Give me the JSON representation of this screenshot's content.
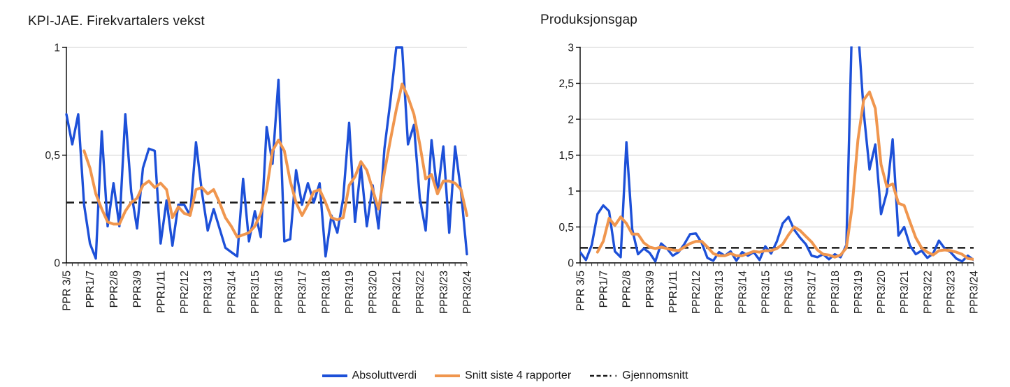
{
  "figure": {
    "legend": [
      {
        "label": "Absoluttverdi",
        "color": "#1d50d8",
        "style": "solid"
      },
      {
        "label": "Snitt siste 4 rapporter",
        "color": "#f0964e",
        "style": "solid"
      },
      {
        "label": "Gjennomsnitt",
        "color": "#1a1a1a",
        "style": "dash-dot"
      }
    ]
  },
  "colors": {
    "absolute_line": "#1d50d8",
    "average4_line": "#f0964e",
    "mean_line": "#1a1a1a",
    "gridline": "#d9d9d9",
    "axis": "#000000",
    "text": "#1a1a1a"
  },
  "chart_data": [
    {
      "type": "line",
      "title": "KPI-JAE. Firekvartalers vekst",
      "ylim": [
        0,
        1
      ],
      "y_ticks": [
        {
          "value": 1,
          "label": "1"
        },
        {
          "value": 0.5,
          "label": "0,5"
        },
        {
          "value": 0,
          "label": "0"
        }
      ],
      "gridline_values": [
        1,
        0.5
      ],
      "x_tick_labels": [
        "PPR 3/5",
        "PPR1/7",
        "PPR2/8",
        "PPR3/9",
        "PPR1/11",
        "PPR2/12",
        "PPR3/13",
        "PPR3/14",
        "PPR3/15",
        "PPR3/16",
        "PPR3/17",
        "PPR3/18",
        "PPR3/19",
        "PPR3/20",
        "PPR3/21",
        "PPR3/22",
        "PPR3/23",
        "PPR3/24"
      ],
      "x_label_every": 4,
      "n_points": 69,
      "legend_position": "bottom",
      "grid": "horizontal",
      "series": [
        {
          "name": "Absoluttverdi",
          "values": [
            0.69,
            0.55,
            0.69,
            0.27,
            0.09,
            0.02,
            0.61,
            0.17,
            0.37,
            0.17,
            0.69,
            0.33,
            0.16,
            0.44,
            0.53,
            0.52,
            0.09,
            0.29,
            0.08,
            0.27,
            0.27,
            0.22,
            0.56,
            0.33,
            0.15,
            0.25,
            0.16,
            0.07,
            0.05,
            0.03,
            0.39,
            0.1,
            0.24,
            0.12,
            0.63,
            0.46,
            0.85,
            0.1,
            0.11,
            0.43,
            0.27,
            0.37,
            0.28,
            0.37,
            0.03,
            0.22,
            0.14,
            0.3,
            0.65,
            0.19,
            0.45,
            0.17,
            0.36,
            0.16,
            0.53,
            0.75,
            1.0,
            1.0,
            0.55,
            0.64,
            0.3,
            0.15,
            0.57,
            0.32,
            0.54,
            0.14,
            0.54,
            0.33,
            0.04
          ]
        },
        {
          "name": "Snitt siste 4 rapporter",
          "values": [
            null,
            null,
            null,
            0.52,
            0.44,
            0.32,
            0.25,
            0.19,
            0.18,
            0.18,
            0.24,
            0.28,
            0.3,
            0.36,
            0.38,
            0.35,
            0.37,
            0.34,
            0.21,
            0.26,
            0.23,
            0.22,
            0.34,
            0.35,
            0.32,
            0.34,
            0.28,
            0.21,
            0.17,
            0.12,
            0.13,
            0.14,
            0.17,
            0.23,
            0.34,
            0.52,
            0.57,
            0.52,
            0.38,
            0.28,
            0.22,
            0.27,
            0.33,
            0.34,
            0.28,
            0.21,
            0.2,
            0.21,
            0.36,
            0.4,
            0.47,
            0.43,
            0.34,
            0.25,
            0.42,
            0.57,
            0.71,
            0.83,
            0.77,
            0.69,
            0.55,
            0.39,
            0.41,
            0.32,
            0.38,
            0.38,
            0.37,
            0.34,
            0.22
          ]
        }
      ],
      "mean_line": {
        "name": "Gjennomsnitt",
        "value": 0.28
      }
    },
    {
      "type": "line",
      "title": "Produksjonsgap",
      "ylim": [
        0,
        3
      ],
      "y_ticks": [
        {
          "value": 3,
          "label": "3"
        },
        {
          "value": 2.5,
          "label": "2,5"
        },
        {
          "value": 2,
          "label": "2"
        },
        {
          "value": 1.5,
          "label": "1,5"
        },
        {
          "value": 1,
          "label": "1"
        },
        {
          "value": 0.5,
          "label": "0,5"
        },
        {
          "value": 0,
          "label": "0"
        }
      ],
      "gridline_values": [
        3,
        2.5,
        2,
        1.5,
        1,
        0.5
      ],
      "x_tick_labels": [
        "PPR 3/5",
        "PPR1/7",
        "PPR2/8",
        "PPR3/9",
        "PPR1/11",
        "PPR2/12",
        "PPR3/13",
        "PPR3/14",
        "PPR3/15",
        "PPR3/16",
        "PPR3/17",
        "PPR3/18",
        "PPR3/19",
        "PPR3/20",
        "PPR3/21",
        "PPR3/22",
        "PPR3/23",
        "PPR3/24"
      ],
      "x_label_every": 4,
      "n_points": 69,
      "legend_position": "bottom",
      "grid": "horizontal",
      "clip_to_plot": true,
      "series": [
        {
          "name": "Absoluttverdi",
          "values": [
            0.15,
            0.04,
            0.25,
            0.68,
            0.8,
            0.72,
            0.16,
            0.08,
            1.68,
            0.47,
            0.12,
            0.2,
            0.14,
            0.02,
            0.27,
            0.2,
            0.1,
            0.15,
            0.26,
            0.4,
            0.41,
            0.28,
            0.07,
            0.03,
            0.15,
            0.1,
            0.16,
            0.03,
            0.15,
            0.1,
            0.15,
            0.04,
            0.23,
            0.13,
            0.3,
            0.55,
            0.64,
            0.46,
            0.35,
            0.26,
            0.1,
            0.08,
            0.12,
            0.05,
            0.12,
            0.08,
            0.25,
            3.4,
            3.3,
            2.1,
            1.3,
            1.65,
            0.68,
            0.98,
            1.72,
            0.38,
            0.5,
            0.24,
            0.12,
            0.17,
            0.07,
            0.13,
            0.31,
            0.2,
            0.15,
            0.06,
            0.02,
            0.1,
            0.04
          ]
        },
        {
          "name": "Snitt siste 4 rapporter",
          "values": [
            null,
            null,
            null,
            0.15,
            0.3,
            0.62,
            0.52,
            0.64,
            0.55,
            0.4,
            0.4,
            0.28,
            0.22,
            0.2,
            0.22,
            0.2,
            0.18,
            0.17,
            0.22,
            0.27,
            0.3,
            0.3,
            0.22,
            0.13,
            0.1,
            0.1,
            0.13,
            0.1,
            0.1,
            0.13,
            0.16,
            0.15,
            0.17,
            0.17,
            0.2,
            0.26,
            0.39,
            0.5,
            0.45,
            0.37,
            0.29,
            0.18,
            0.12,
            0.11,
            0.08,
            0.11,
            0.21,
            0.78,
            1.71,
            2.27,
            2.38,
            2.15,
            1.37,
            1.06,
            1.1,
            0.83,
            0.8,
            0.57,
            0.35,
            0.21,
            0.15,
            0.11,
            0.17,
            0.18,
            0.17,
            0.15,
            0.12,
            0.06,
            0.05
          ]
        }
      ],
      "mean_line": {
        "name": "Gjennomsnitt",
        "value": 0.21
      }
    }
  ]
}
